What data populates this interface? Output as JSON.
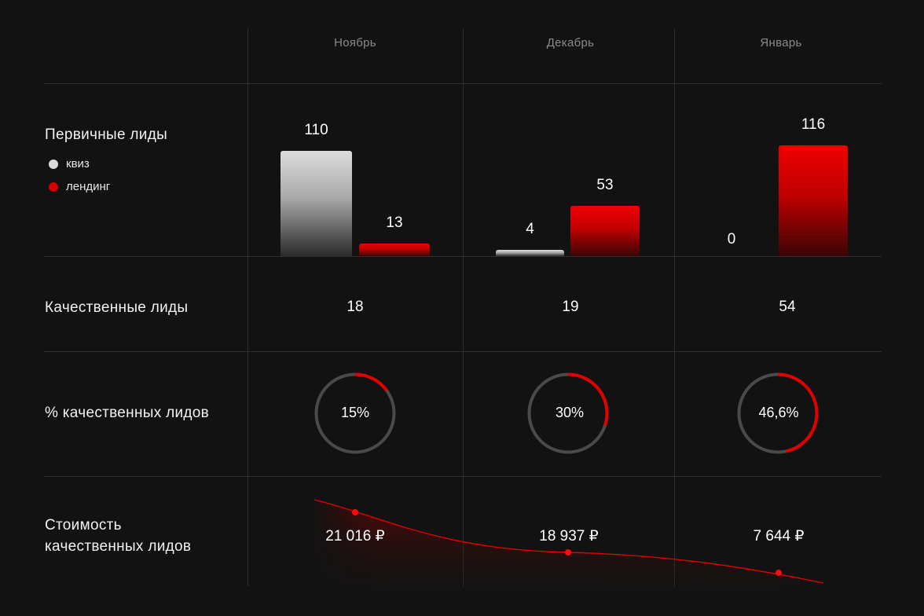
{
  "months": [
    "Ноябрь",
    "Декабрь",
    "Январь"
  ],
  "rows": {
    "primary": "Первичные лиды",
    "quality": "Качественные лиды",
    "percent": "% качественных лидов",
    "cost_line1": "Стоимость",
    "cost_line2": "качественных лидов"
  },
  "legend": [
    {
      "label": "квиз",
      "color": "#d9d9d9"
    },
    {
      "label": "лендинг",
      "color": "#d40000"
    }
  ],
  "chart_data": {
    "type": "bar",
    "categories": [
      "Ноябрь",
      "Декабрь",
      "Январь"
    ],
    "series": [
      {
        "name": "квиз",
        "values": [
          110,
          4,
          0
        ]
      },
      {
        "name": "лендинг",
        "values": [
          13,
          53,
          116
        ]
      }
    ],
    "labels": {
      "quiz": [
        "110",
        "4",
        "0"
      ],
      "landing": [
        "13",
        "53",
        "116"
      ]
    },
    "ylim": [
      0,
      116
    ]
  },
  "quality_leads": [
    "18",
    "19",
    "54"
  ],
  "percent": {
    "values": [
      15,
      30,
      46.6
    ],
    "labels": [
      "15%",
      "30%",
      "46,6%"
    ]
  },
  "cost": {
    "values": [
      21016,
      18937,
      7644
    ],
    "labels": [
      "21 016 ₽",
      "18 937 ₽",
      "7 644 ₽"
    ]
  },
  "colors": {
    "accent": "#e00000",
    "track": "#4a4a4a",
    "background": "#121212"
  }
}
